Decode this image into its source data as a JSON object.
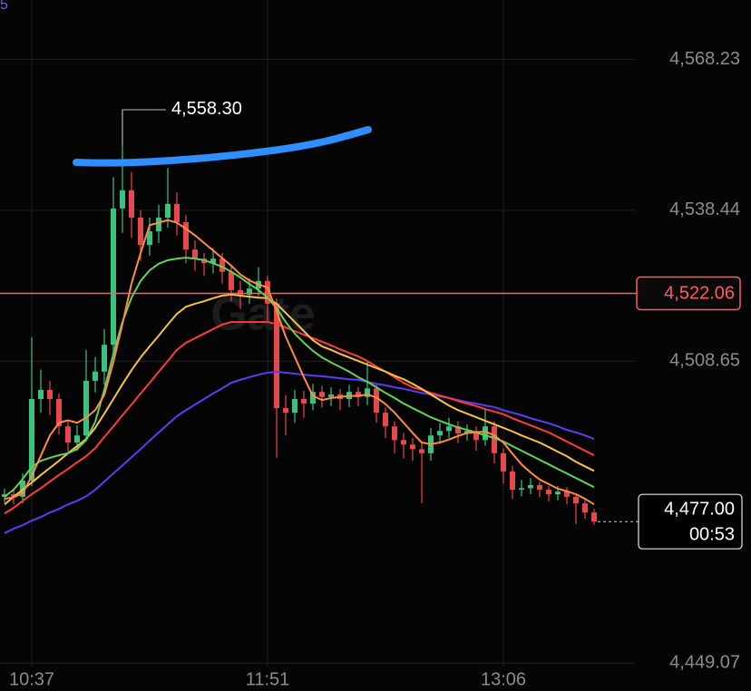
{
  "chart_data": {
    "type": "candlestick",
    "categories": [
      null,
      null,
      null,
      "10:37",
      null,
      null,
      null,
      null,
      null,
      null,
      null,
      null,
      null,
      null,
      null,
      null,
      null,
      null,
      null,
      null,
      null,
      null,
      null,
      null,
      null,
      null,
      null,
      null,
      null,
      "11:51",
      null,
      null,
      null,
      null,
      null,
      null,
      null,
      null,
      null,
      null,
      null,
      null,
      null,
      null,
      null,
      null,
      null,
      null,
      null,
      null,
      null,
      null,
      null,
      null,
      null,
      "13:06",
      null,
      null,
      null,
      null,
      null,
      null,
      null,
      null,
      null,
      null
    ],
    "open": [
      4481.9,
      4482.4,
      4481.9,
      4485.1,
      4501.2,
      4503.0,
      4501.2,
      4495.8,
      4492.6,
      4494.0,
      4504.8,
      4506.6,
      4511.9,
      4538.8,
      4542.4,
      4537.0,
      4531.6,
      4534.3,
      4537.0,
      4539.7,
      4536.1,
      4530.7,
      4528.9,
      4528.0,
      4528.9,
      4526.3,
      4522.7,
      4521.8,
      4523.0,
      4524.5,
      4520.0,
      4499.4,
      4498.5,
      4501.2,
      4500.3,
      4502.6,
      4501.6,
      4502.1,
      4501.2,
      4502.6,
      4501.6,
      4503.3,
      4498.5,
      4495.8,
      4493.1,
      4492.2,
      4491.3,
      4490.5,
      4494.0,
      4494.9,
      4495.8,
      4494.4,
      4494.9,
      4493.1,
      4495.8,
      4490.5,
      4486.9,
      4483.3,
      4483.6,
      4484.2,
      4483.3,
      4482.4,
      4482.9,
      4481.9,
      4480.6,
      4478.8
    ],
    "high": [
      4483.5,
      4483.6,
      4486.5,
      4513.4,
      4507.0,
      4504.8,
      4502.3,
      4497.0,
      4496.0,
      4510.9,
      4509.5,
      4515.0,
      4545.0,
      4558.3,
      4546.0,
      4538.5,
      4537.0,
      4539.5,
      4546.8,
      4542.0,
      4537.5,
      4532.5,
      4530.0,
      4531.0,
      4530.0,
      4527.5,
      4524.5,
      4525.0,
      4527.2,
      4525.5,
      4521.0,
      4502.0,
      4503.0,
      4502.8,
      4504.2,
      4503.8,
      4503.5,
      4503.2,
      4504.0,
      4503.6,
      4508.7,
      4504.2,
      4499.5,
      4496.8,
      4494.5,
      4493.5,
      4492.5,
      4495.5,
      4496.5,
      4497.5,
      4496.8,
      4496.2,
      4495.8,
      4499.4,
      4496.8,
      4491.5,
      4488.0,
      4485.2,
      4485.6,
      4484.8,
      4484.0,
      4484.0,
      4483.8,
      4482.6,
      4481.2,
      4479.5
    ],
    "low": [
      4480.8,
      4480.4,
      4480.6,
      4484.0,
      4498.5,
      4498.0,
      4494.2,
      4490.8,
      4491.0,
      4492.8,
      4502.5,
      4504.0,
      4510.0,
      4534.0,
      4533.0,
      4528.5,
      4529.5,
      4532.0,
      4535.0,
      4533.5,
      4528.0,
      4526.5,
      4525.5,
      4526.0,
      4524.0,
      4520.5,
      4519.0,
      4520.0,
      4521.5,
      4516.5,
      4489.6,
      4494.0,
      4496.5,
      4497.5,
      4499.0,
      4499.5,
      4499.8,
      4499.0,
      4499.6,
      4499.8,
      4500.0,
      4496.5,
      4493.5,
      4490.5,
      4489.5,
      4489.0,
      4480.6,
      4489.0,
      4492.5,
      4493.5,
      4492.5,
      4493.0,
      4491.0,
      4492.0,
      4488.5,
      4484.5,
      4481.5,
      4482.0,
      4482.4,
      4481.8,
      4481.0,
      4481.2,
      4480.4,
      4476.5,
      4477.5,
      4476.3
    ],
    "close": [
      4482.4,
      4481.9,
      4485.1,
      4501.2,
      4503.0,
      4501.2,
      4495.8,
      4492.6,
      4494.0,
      4504.8,
      4506.6,
      4511.9,
      4538.8,
      4542.4,
      4537.0,
      4531.6,
      4534.3,
      4537.0,
      4539.7,
      4536.1,
      4530.7,
      4528.9,
      4528.0,
      4528.9,
      4526.3,
      4522.7,
      4521.8,
      4523.0,
      4524.5,
      4520.0,
      4499.4,
      4498.5,
      4501.2,
      4500.3,
      4502.6,
      4501.6,
      4502.1,
      4501.2,
      4502.6,
      4501.6,
      4503.3,
      4498.5,
      4495.8,
      4493.1,
      4492.2,
      4491.3,
      4490.5,
      4494.0,
      4494.9,
      4495.8,
      4494.4,
      4494.9,
      4493.1,
      4495.8,
      4490.5,
      4486.9,
      4483.3,
      4483.6,
      4484.2,
      4483.3,
      4482.4,
      4482.9,
      4481.9,
      4480.6,
      4478.8,
      4477.0
    ],
    "up_color": "#3cc27f",
    "down_color": "#e5484d",
    "series": [
      {
        "color": "#5b3df5",
        "values": [
          4474.7,
          4475.6,
          4476.3,
          4477.2,
          4477.9,
          4478.8,
          4479.5,
          4480.4,
          4481.1,
          4482.0,
          4483.3,
          4484.9,
          4486.5,
          4488.1,
          4489.7,
          4491.3,
          4493.0,
          4494.6,
          4496.2,
          4497.8,
          4499.0,
          4500.1,
          4501.2,
          4502.3,
          4503.3,
          4504.4,
          4505.0,
          4505.5,
          4506.0,
          4506.4,
          4506.6,
          4506.4,
          4506.2,
          4506.0,
          4505.8,
          4505.7,
          4505.5,
          4505.3,
          4505.1,
          4505.0,
          4504.6,
          4504.2,
          4503.9,
          4503.5,
          4503.2,
          4502.8,
          4502.4,
          4502.1,
          4501.7,
          4501.4,
          4501.0,
          4500.6,
          4500.3,
          4499.9,
          4499.6,
          4499.0,
          4498.5,
          4498.0,
          4497.4,
          4496.9,
          4496.4,
          4495.8,
          4495.1,
          4494.6,
          4494.0,
          4493.3
        ]
      },
      {
        "color": "#ff3b3b",
        "values": [
          4478.6,
          4479.7,
          4481.1,
          4482.4,
          4483.6,
          4484.9,
          4486.2,
          4487.4,
          4488.7,
          4489.9,
          4491.5,
          4493.7,
          4495.8,
          4498.0,
          4500.1,
          4502.3,
          4504.4,
          4506.6,
          4508.7,
          4510.9,
          4512.3,
          4513.2,
          4514.1,
          4515.0,
          4515.9,
          4516.4,
          4516.4,
          4516.4,
          4516.4,
          4516.4,
          4516.0,
          4515.3,
          4514.6,
          4513.9,
          4513.2,
          4512.5,
          4511.8,
          4511.0,
          4510.3,
          4509.6,
          4508.7,
          4507.6,
          4506.6,
          4505.5,
          4504.4,
          4503.5,
          4503.0,
          4502.4,
          4501.9,
          4501.4,
          4500.8,
          4500.3,
          4499.8,
          4499.2,
          4498.7,
          4498.2,
          4497.4,
          4496.7,
          4496.0,
          4495.3,
          4494.6,
          4493.7,
          4492.8,
          4491.9,
          4491.0,
          4490.1
        ]
      },
      {
        "color": "#f7c244",
        "values": [
          4480.4,
          4481.9,
          4483.3,
          4484.7,
          4486.2,
          4487.6,
          4489.0,
          4490.5,
          4491.9,
          4493.3,
          4495.5,
          4498.3,
          4501.2,
          4504.1,
          4506.9,
          4509.4,
          4511.6,
          4513.7,
          4515.9,
          4518.0,
          4519.4,
          4520.0,
          4520.5,
          4521.1,
          4521.6,
          4521.8,
          4521.6,
          4521.4,
          4521.2,
          4521.1,
          4520.0,
          4518.2,
          4516.4,
          4514.6,
          4512.8,
          4511.6,
          4510.9,
          4510.1,
          4509.4,
          4508.7,
          4508.0,
          4507.3,
          4506.6,
          4505.8,
          4505.1,
          4504.2,
          4503.2,
          4502.1,
          4501.0,
          4499.9,
          4499.0,
          4498.3,
          4497.6,
          4496.9,
          4496.2,
          4495.5,
          4494.8,
          4494.0,
          4493.3,
          4492.6,
          4491.7,
          4490.8,
          4489.9,
          4488.8,
          4487.9,
          4487.0
        ]
      },
      {
        "color": "#5ed35a",
        "values": [
          4481.9,
          4483.3,
          4485.4,
          4487.8,
          4489.0,
          4489.6,
          4490.1,
          4490.5,
          4491.3,
          4493.1,
          4496.7,
          4503.0,
          4510.1,
          4516.4,
          4521.2,
          4524.5,
          4526.6,
          4527.9,
          4528.6,
          4528.9,
          4529.1,
          4528.9,
          4528.6,
          4528.0,
          4527.3,
          4526.3,
          4525.2,
          4523.9,
          4522.7,
          4521.2,
          4519.1,
          4516.4,
          4514.1,
          4512.3,
          4510.7,
          4509.4,
          4508.4,
          4507.5,
          4506.6,
          4505.5,
          4504.6,
          4503.5,
          4502.4,
          4501.4,
          4500.3,
          4499.4,
          4498.5,
          4497.6,
          4496.9,
          4496.2,
          4495.6,
          4495.1,
          4494.6,
          4494.0,
          4493.5,
          4492.8,
          4491.9,
          4491.0,
          4490.1,
          4489.2,
          4488.3,
          4487.4,
          4486.5,
          4485.6,
          4484.7,
          4483.8
        ]
      },
      {
        "color": "#ff8c42",
        "values": [
          4481.5,
          4481.8,
          4482.6,
          4486.0,
          4490.0,
          4494.0,
          4496.5,
          4497.0,
          4496.5,
          4497.5,
          4499.0,
          4502.0,
          4508.5,
          4516.0,
          4524.0,
          4530.0,
          4535.5,
          4536.0,
          4536.5,
          4536.0,
          4534.8,
          4533.5,
          4532.0,
          4530.5,
          4529.0,
          4527.5,
          4525.8,
          4524.6,
          4523.8,
          4523.2,
          4518.5,
          4513.5,
          4509.5,
          4505.5,
          4501.8,
          4501.0,
          4501.4,
          4501.6,
          4501.8,
          4501.8,
          4502.1,
          4501.5,
          4500.2,
          4498.5,
          4496.5,
          4494.5,
          4492.6,
          4492.3,
          4492.6,
          4493.2,
          4493.9,
          4494.5,
          4494.6,
          4494.8,
          4494.0,
          4492.6,
          4490.4,
          4488.3,
          4486.7,
          4485.3,
          4484.4,
          4483.5,
          4483.0,
          4482.4,
          4481.5,
          4480.4
        ]
      }
    ],
    "ylim": [
      4448.4,
      4579.95
    ],
    "yticks": [
      {
        "value": 4568.23,
        "label": "4,568.23"
      },
      {
        "value": 4538.44,
        "label": "4,538.44"
      },
      {
        "value": 4508.65,
        "label": "4,508.65"
      },
      {
        "value": 4449.07,
        "label": "4,449.07"
      }
    ],
    "grid": true,
    "price_line": {
      "value": 4522.06,
      "label": "4,522.06",
      "color": "#ff5a5f"
    },
    "last_price": {
      "value": 4477.0,
      "label": "4,477.00"
    },
    "countdown": "00:53",
    "max_label": {
      "value": 4558.3,
      "label": "4,558.30"
    },
    "watermark": "Gate",
    "corner_label": "5"
  }
}
